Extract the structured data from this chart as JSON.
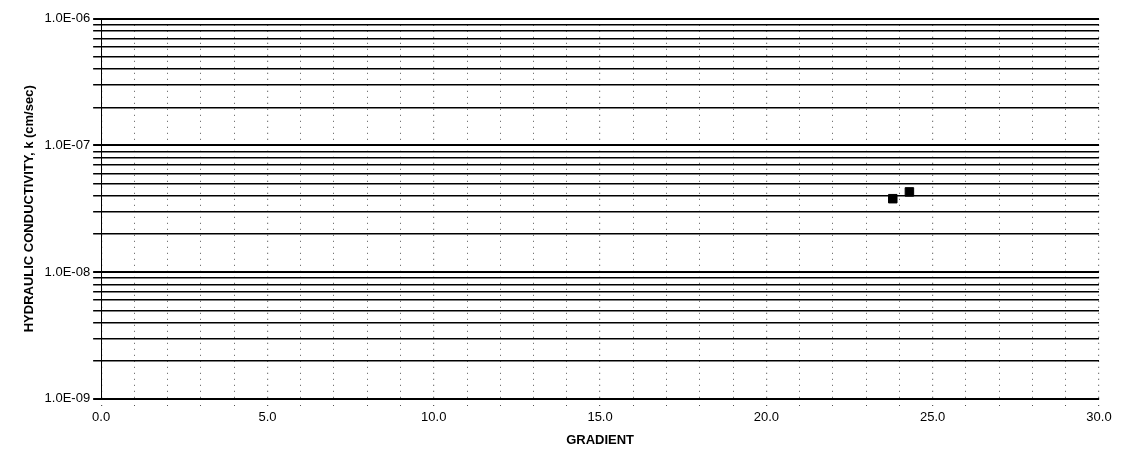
{
  "chart_data": {
    "type": "scatter",
    "xlabel": "GRADIENT",
    "ylabel": "HYDRAULIC CONDUCTIVITY, k (cm/sec)",
    "x": [
      23.8,
      24.3
    ],
    "values": [
      3.8e-08,
      4.3e-08
    ],
    "color": "#000000",
    "marker": "square",
    "log": "y",
    "grid": true,
    "legend": false,
    "xlim": [
      0,
      30
    ],
    "xticks": [
      {
        "value": 0,
        "label": "0.0"
      },
      {
        "value": 1,
        "label": null
      },
      {
        "value": 2,
        "label": null
      },
      {
        "value": 3,
        "label": null
      },
      {
        "value": 4,
        "label": null
      },
      {
        "value": 5,
        "label": "5.0"
      },
      {
        "value": 6,
        "label": null
      },
      {
        "value": 7,
        "label": null
      },
      {
        "value": 8,
        "label": null
      },
      {
        "value": 9,
        "label": null
      },
      {
        "value": 10,
        "label": "10.0"
      },
      {
        "value": 11,
        "label": null
      },
      {
        "value": 12,
        "label": null
      },
      {
        "value": 13,
        "label": null
      },
      {
        "value": 14,
        "label": null
      },
      {
        "value": 15,
        "label": "15.0"
      },
      {
        "value": 16,
        "label": null
      },
      {
        "value": 17,
        "label": null
      },
      {
        "value": 18,
        "label": null
      },
      {
        "value": 19,
        "label": null
      },
      {
        "value": 20,
        "label": "20.0"
      },
      {
        "value": 21,
        "label": null
      },
      {
        "value": 22,
        "label": null
      },
      {
        "value": 23,
        "label": null
      },
      {
        "value": 24,
        "label": null
      },
      {
        "value": 25,
        "label": "25.0"
      },
      {
        "value": 26,
        "label": null
      },
      {
        "value": 27,
        "label": null
      },
      {
        "value": 28,
        "label": null
      },
      {
        "value": 29,
        "label": null
      },
      {
        "value": 30,
        "label": "30.0"
      }
    ],
    "ylim": [
      1e-09,
      1e-06
    ],
    "yticks": [
      {
        "value": 1e-09,
        "label": "1.0E-09"
      },
      {
        "value": 2e-09,
        "label": null
      },
      {
        "value": 3e-09,
        "label": null
      },
      {
        "value": 4e-09,
        "label": null
      },
      {
        "value": 5e-09,
        "label": null
      },
      {
        "value": 6e-09,
        "label": null
      },
      {
        "value": 7e-09,
        "label": null
      },
      {
        "value": 8e-09,
        "label": null
      },
      {
        "value": 9e-09,
        "label": null
      },
      {
        "value": 1e-08,
        "label": "1.0E-08"
      },
      {
        "value": 2e-08,
        "label": null
      },
      {
        "value": 3e-08,
        "label": null
      },
      {
        "value": 4e-08,
        "label": null
      },
      {
        "value": 5e-08,
        "label": null
      },
      {
        "value": 6e-08,
        "label": null
      },
      {
        "value": 7e-08,
        "label": null
      },
      {
        "value": 8e-08,
        "label": null
      },
      {
        "value": 9e-08,
        "label": null
      },
      {
        "value": 1e-07,
        "label": "1.0E-07"
      },
      {
        "value": 2e-07,
        "label": null
      },
      {
        "value": 3e-07,
        "label": null
      },
      {
        "value": 4e-07,
        "label": null
      },
      {
        "value": 5e-07,
        "label": null
      },
      {
        "value": 6e-07,
        "label": null
      },
      {
        "value": 7e-07,
        "label": null
      },
      {
        "value": 8e-07,
        "label": null
      },
      {
        "value": 9e-07,
        "label": null
      },
      {
        "value": 1e-06,
        "label": "1.0E-06"
      }
    ]
  }
}
